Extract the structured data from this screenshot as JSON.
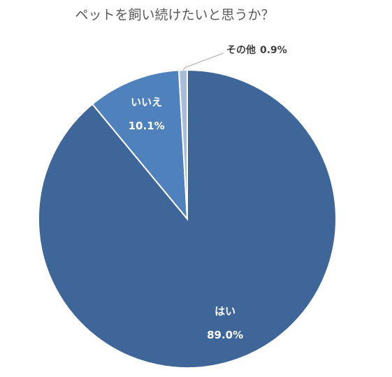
{
  "chart_data": {
    "type": "pie",
    "title": "ペットを飼い続けたいと思うか？",
    "categories": [
      "はい",
      "いいえ",
      "その他"
    ],
    "values": [
      89.0,
      10.1,
      0.9
    ],
    "value_labels": [
      "89.0%",
      "10.1%",
      "0.9%"
    ],
    "colors": [
      "#3f6699",
      "#4f81bd",
      "#a9bcd9"
    ]
  }
}
